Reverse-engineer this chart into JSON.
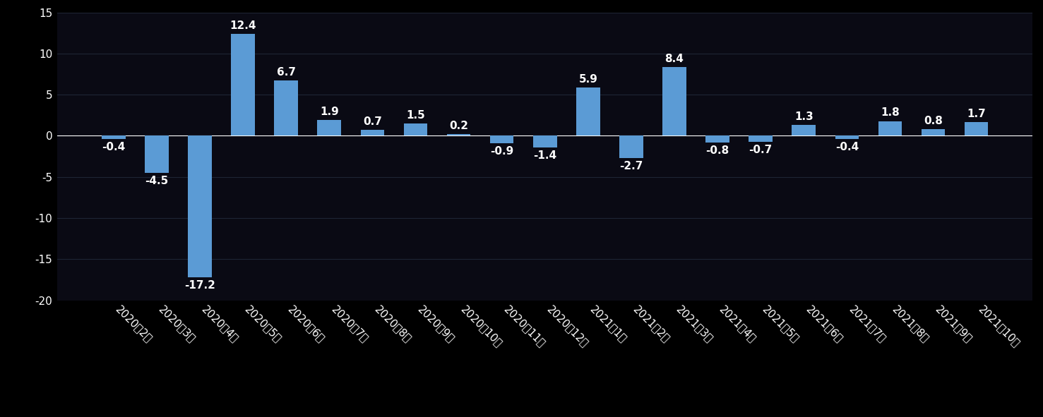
{
  "categories": [
    "2020年2月",
    "2020年3月",
    "2020年4月",
    "2020年5月",
    "2020年6月",
    "2020年7月",
    "2020年8月",
    "2020年9月",
    "2020年10月",
    "2020年11月",
    "2020年12月",
    "2021年1月",
    "2021年2月",
    "2021年3月",
    "2021年4月",
    "2021年5月",
    "2021年6月",
    "2021年7月",
    "2021年8月",
    "2021年9月",
    "2021年10月"
  ],
  "values": [
    -0.4,
    -4.5,
    -17.2,
    12.4,
    6.7,
    1.9,
    0.7,
    1.5,
    0.2,
    -0.9,
    -1.4,
    5.9,
    -2.7,
    8.4,
    -0.8,
    -0.7,
    1.3,
    -0.4,
    1.8,
    0.8,
    1.7
  ],
  "bar_color": "#5b9bd5",
  "background_color": "#000000",
  "plot_bg_color": "#0a0a14",
  "text_color": "#ffffff",
  "grid_color": "#1e2535",
  "ylim": [
    -20,
    15
  ],
  "yticks": [
    -20,
    -15,
    -10,
    -5,
    0,
    5,
    10,
    15
  ],
  "label_fontsize": 11,
  "tick_fontsize": 11,
  "bar_width": 0.55
}
